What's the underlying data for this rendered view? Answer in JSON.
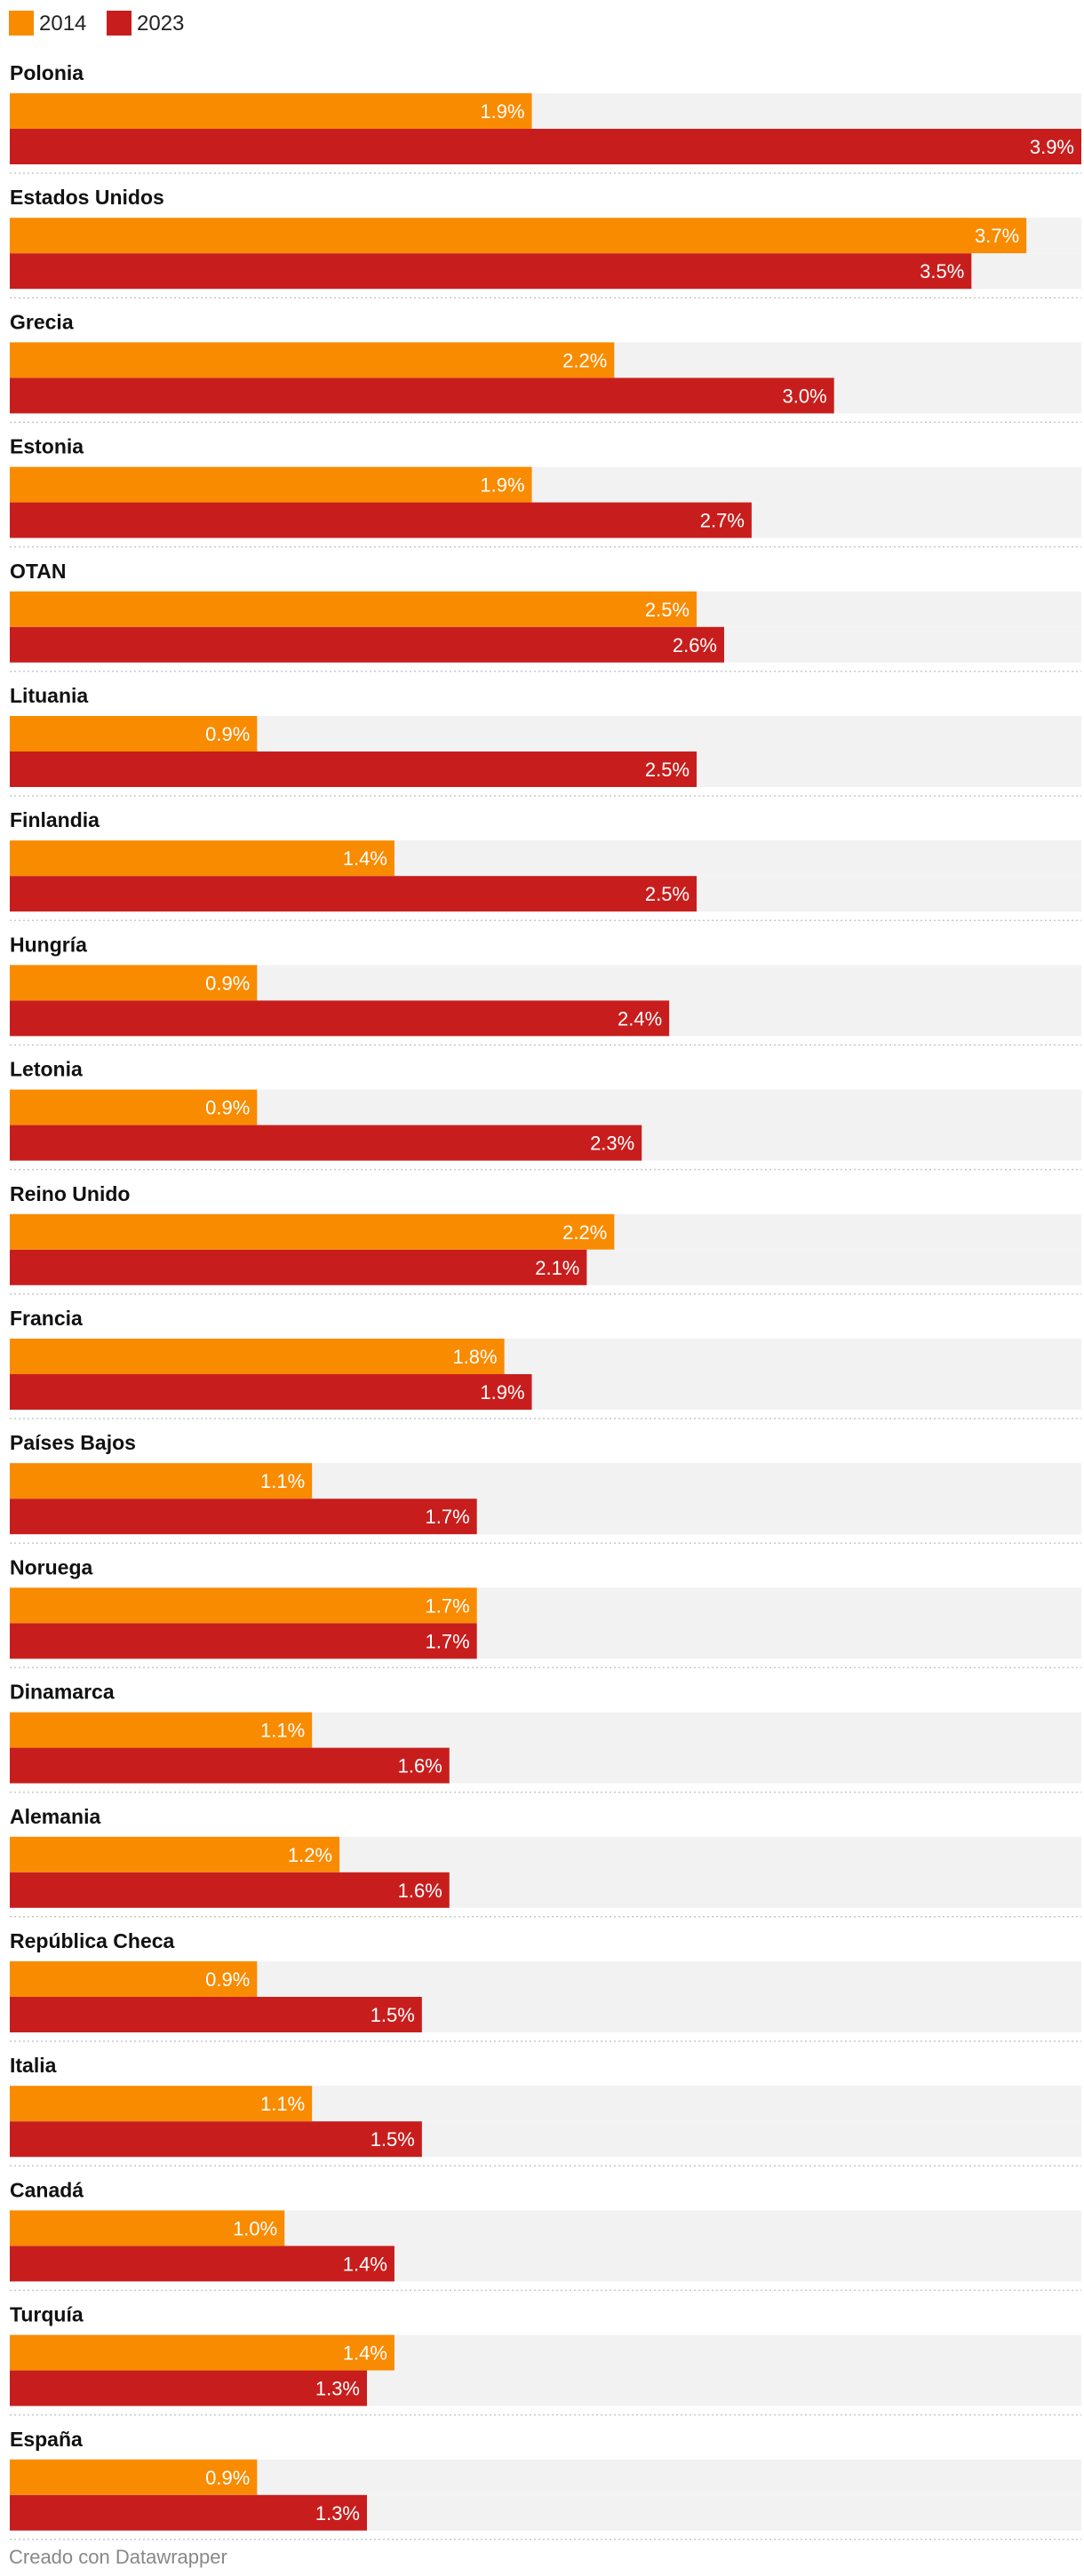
{
  "chart_data": {
    "type": "bar",
    "orientation": "horizontal",
    "title": "",
    "xlim": [
      0,
      3.9
    ],
    "unit": "%",
    "grid": false,
    "legend_position": "top-left",
    "series": [
      {
        "name": "2014",
        "color": "#f98b00",
        "values": [
          1.9,
          3.7,
          2.2,
          1.9,
          2.5,
          0.9,
          1.4,
          0.9,
          0.9,
          2.2,
          1.8,
          1.1,
          1.7,
          1.1,
          1.2,
          0.9,
          1.1,
          1.0,
          1.4,
          0.9
        ],
        "labels": [
          "1.9%",
          "3.7%",
          "2.2%",
          "1.9%",
          "2.5%",
          "0.9%",
          "1.4%",
          "0.9%",
          "0.9%",
          "2.2%",
          "1.8%",
          "1.1%",
          "1.7%",
          "1.1%",
          "1.2%",
          "0.9%",
          "1.1%",
          "1.0%",
          "1.4%",
          "0.9%"
        ]
      },
      {
        "name": "2023",
        "color": "#c71e1d",
        "values": [
          3.9,
          3.5,
          3.0,
          2.7,
          2.6,
          2.5,
          2.5,
          2.4,
          2.3,
          2.1,
          1.9,
          1.7,
          1.7,
          1.6,
          1.6,
          1.5,
          1.5,
          1.4,
          1.3,
          1.3
        ],
        "labels": [
          "3.9%",
          "3.5%",
          "3.0%",
          "2.7%",
          "2.6%",
          "2.5%",
          "2.5%",
          "2.4%",
          "2.3%",
          "2.1%",
          "1.9%",
          "1.7%",
          "1.7%",
          "1.6%",
          "1.6%",
          "1.5%",
          "1.5%",
          "1.4%",
          "1.3%",
          "1.3%"
        ]
      }
    ],
    "categories": [
      "Polonia",
      "Estados Unidos",
      "Grecia",
      "Estonia",
      "OTAN",
      "Lituania",
      "Finlandia",
      "Hungría",
      "Letonia",
      "Reino Unido",
      "Francia",
      "Países Bajos",
      "Noruega",
      "Dinamarca",
      "Alemania",
      "República Checa",
      "Italia",
      "Canadá",
      "Turquía",
      "España"
    ],
    "background_color": "#f2f2f2",
    "separator_color": "#c8c8c8"
  },
  "footer": {
    "credit": "Creado con Datawrapper"
  }
}
